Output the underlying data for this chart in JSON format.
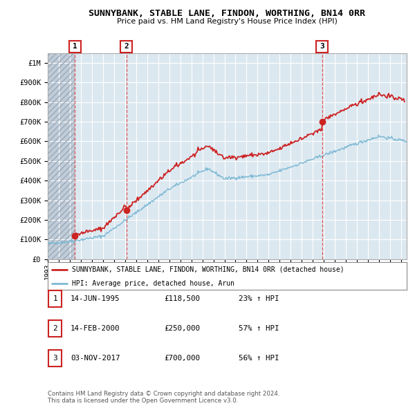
{
  "title": "SUNNYBANK, STABLE LANE, FINDON, WORTHING, BN14 0RR",
  "subtitle": "Price paid vs. HM Land Registry's House Price Index (HPI)",
  "ylim": [
    0,
    1050000
  ],
  "xlim_start": 1993.0,
  "xlim_end": 2025.5,
  "yticks": [
    0,
    100000,
    200000,
    300000,
    400000,
    500000,
    600000,
    700000,
    800000,
    900000,
    1000000
  ],
  "ytick_labels": [
    "£0",
    "£100K",
    "£200K",
    "£300K",
    "£400K",
    "£500K",
    "£600K",
    "£700K",
    "£800K",
    "£900K",
    "£1M"
  ],
  "xticks": [
    1993,
    1994,
    1995,
    1996,
    1997,
    1998,
    1999,
    2000,
    2001,
    2002,
    2003,
    2004,
    2005,
    2006,
    2007,
    2008,
    2009,
    2010,
    2011,
    2012,
    2013,
    2014,
    2015,
    2016,
    2017,
    2018,
    2019,
    2020,
    2021,
    2022,
    2023,
    2024,
    2025
  ],
  "purchases": [
    {
      "num": 1,
      "year": 1995.45,
      "price": 118500
    },
    {
      "num": 2,
      "year": 2000.12,
      "price": 250000
    },
    {
      "num": 3,
      "year": 2017.84,
      "price": 700000
    }
  ],
  "hpi_line_color": "#7bb8d4",
  "price_line_color": "#cc2222",
  "purchase_marker_color": "#cc2222",
  "purchase_vline_color": "#dd4444",
  "bg_color": "#ffffff",
  "plot_bg_color": "#dce8f0",
  "grid_color": "#ffffff",
  "hatch_bg_color": "#c0ccd8",
  "legend_entries": [
    "SUNNYBANK, STABLE LANE, FINDON, WORTHING, BN14 0RR (detached house)",
    "HPI: Average price, detached house, Arun"
  ],
  "table_rows": [
    {
      "num": 1,
      "date": "14-JUN-1995",
      "price": "£118,500",
      "change": "23% ↑ HPI"
    },
    {
      "num": 2,
      "date": "14-FEB-2000",
      "price": "£250,000",
      "change": "57% ↑ HPI"
    },
    {
      "num": 3,
      "date": "03-NOV-2017",
      "price": "£700,000",
      "change": "56% ↑ HPI"
    }
  ],
  "footer": "Contains HM Land Registry data © Crown copyright and database right 2024.\nThis data is licensed under the Open Government Licence v3.0."
}
